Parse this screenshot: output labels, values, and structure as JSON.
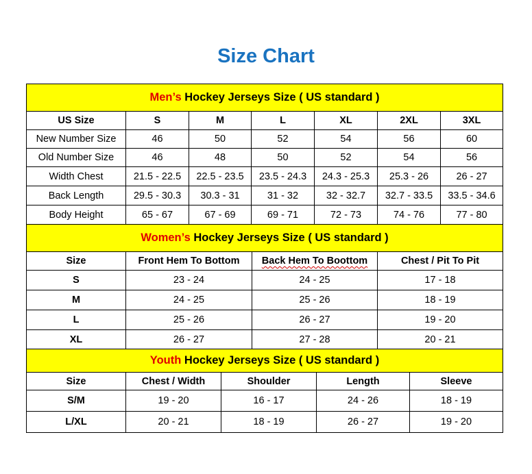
{
  "title": "Size Chart",
  "colors": {
    "title": "#1a73c0",
    "header_bg": "#ffff00",
    "accent": "#e00000"
  },
  "men": {
    "heading_accent": "Men’s",
    "heading_rest": " Hockey Jerseys Size ( US standard )",
    "columns": [
      "US Size",
      "S",
      "M",
      "L",
      "XL",
      "2XL",
      "3XL"
    ],
    "rows": [
      [
        "New Number Size",
        "46",
        "50",
        "52",
        "54",
        "56",
        "60"
      ],
      [
        "Old Number Size",
        "46",
        "48",
        "50",
        "52",
        "54",
        "56"
      ],
      [
        "Width Chest",
        "21.5 - 22.5",
        "22.5 - 23.5",
        "23.5 - 24.3",
        "24.3 - 25.3",
        "25.3 - 26",
        "26 - 27"
      ],
      [
        "Back Length",
        "29.5 - 30.3",
        "30.3 - 31",
        "31 - 32",
        "32 - 32.7",
        "32.7 - 33.5",
        "33.5 - 34.6"
      ],
      [
        "Body Height",
        "65 - 67",
        "67 - 69",
        "69 - 71",
        "72 - 73",
        "74 - 76",
        "77 - 80"
      ]
    ]
  },
  "women": {
    "heading_accent": "Women’s",
    "heading_rest": " Hockey Jerseys Size ( US standard )",
    "columns": [
      "Size",
      "Front Hem To Bottom",
      "Back Hem To Boottom",
      "Chest / Pit To Pit"
    ],
    "rows": [
      [
        "S",
        "23 - 24",
        "24 - 25",
        "17 - 18"
      ],
      [
        "M",
        "24 - 25",
        "25 - 26",
        "18 - 19"
      ],
      [
        "L",
        "25 - 26",
        "26 - 27",
        "19 - 20"
      ],
      [
        "XL",
        "26 - 27",
        "27 - 28",
        "20 - 21"
      ]
    ]
  },
  "youth": {
    "heading_accent": "Youth",
    "heading_rest": " Hockey Jerseys Size ( US standard )",
    "columns": [
      "Size",
      "Chest / Width",
      "Shoulder",
      "Length",
      "Sleeve"
    ],
    "rows": [
      [
        "S/M",
        "19 - 20",
        "16 - 17",
        "24 - 26",
        "18 - 19"
      ],
      [
        "L/XL",
        "20 - 21",
        "18 - 19",
        "26 - 27",
        "19 - 20"
      ]
    ]
  }
}
